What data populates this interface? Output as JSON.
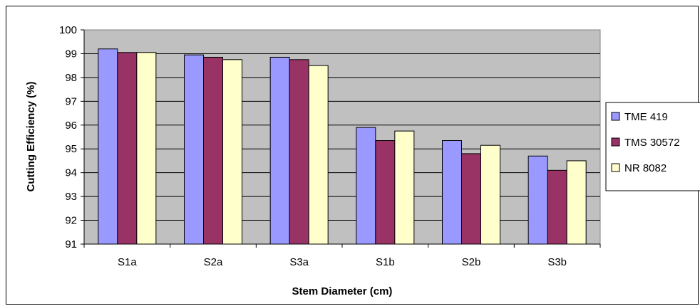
{
  "chart_data": {
    "type": "bar",
    "title": "",
    "xlabel": "Stem Diameter (cm)",
    "ylabel": "Cutting Efficiency (%)",
    "ylim": [
      91,
      100
    ],
    "yticks": [
      91,
      92,
      93,
      94,
      95,
      96,
      97,
      98,
      99,
      100
    ],
    "categories": [
      "S1a",
      "S2a",
      "S3a",
      "S1b",
      "S2b",
      "S3b"
    ],
    "series": [
      {
        "name": "TME 419",
        "color": "#9999ff",
        "values": [
          99.2,
          98.95,
          98.85,
          95.9,
          95.35,
          94.7
        ]
      },
      {
        "name": "TMS 30572",
        "color": "#993366",
        "values": [
          99.05,
          98.85,
          98.75,
          95.35,
          94.8,
          94.1
        ]
      },
      {
        "name": "NR 8082",
        "color": "#ffffcc",
        "values": [
          99.05,
          98.75,
          98.5,
          95.75,
          95.15,
          94.5
        ]
      }
    ],
    "grid": true,
    "plot_background": "#c0c0c0",
    "legend_position": "right"
  }
}
